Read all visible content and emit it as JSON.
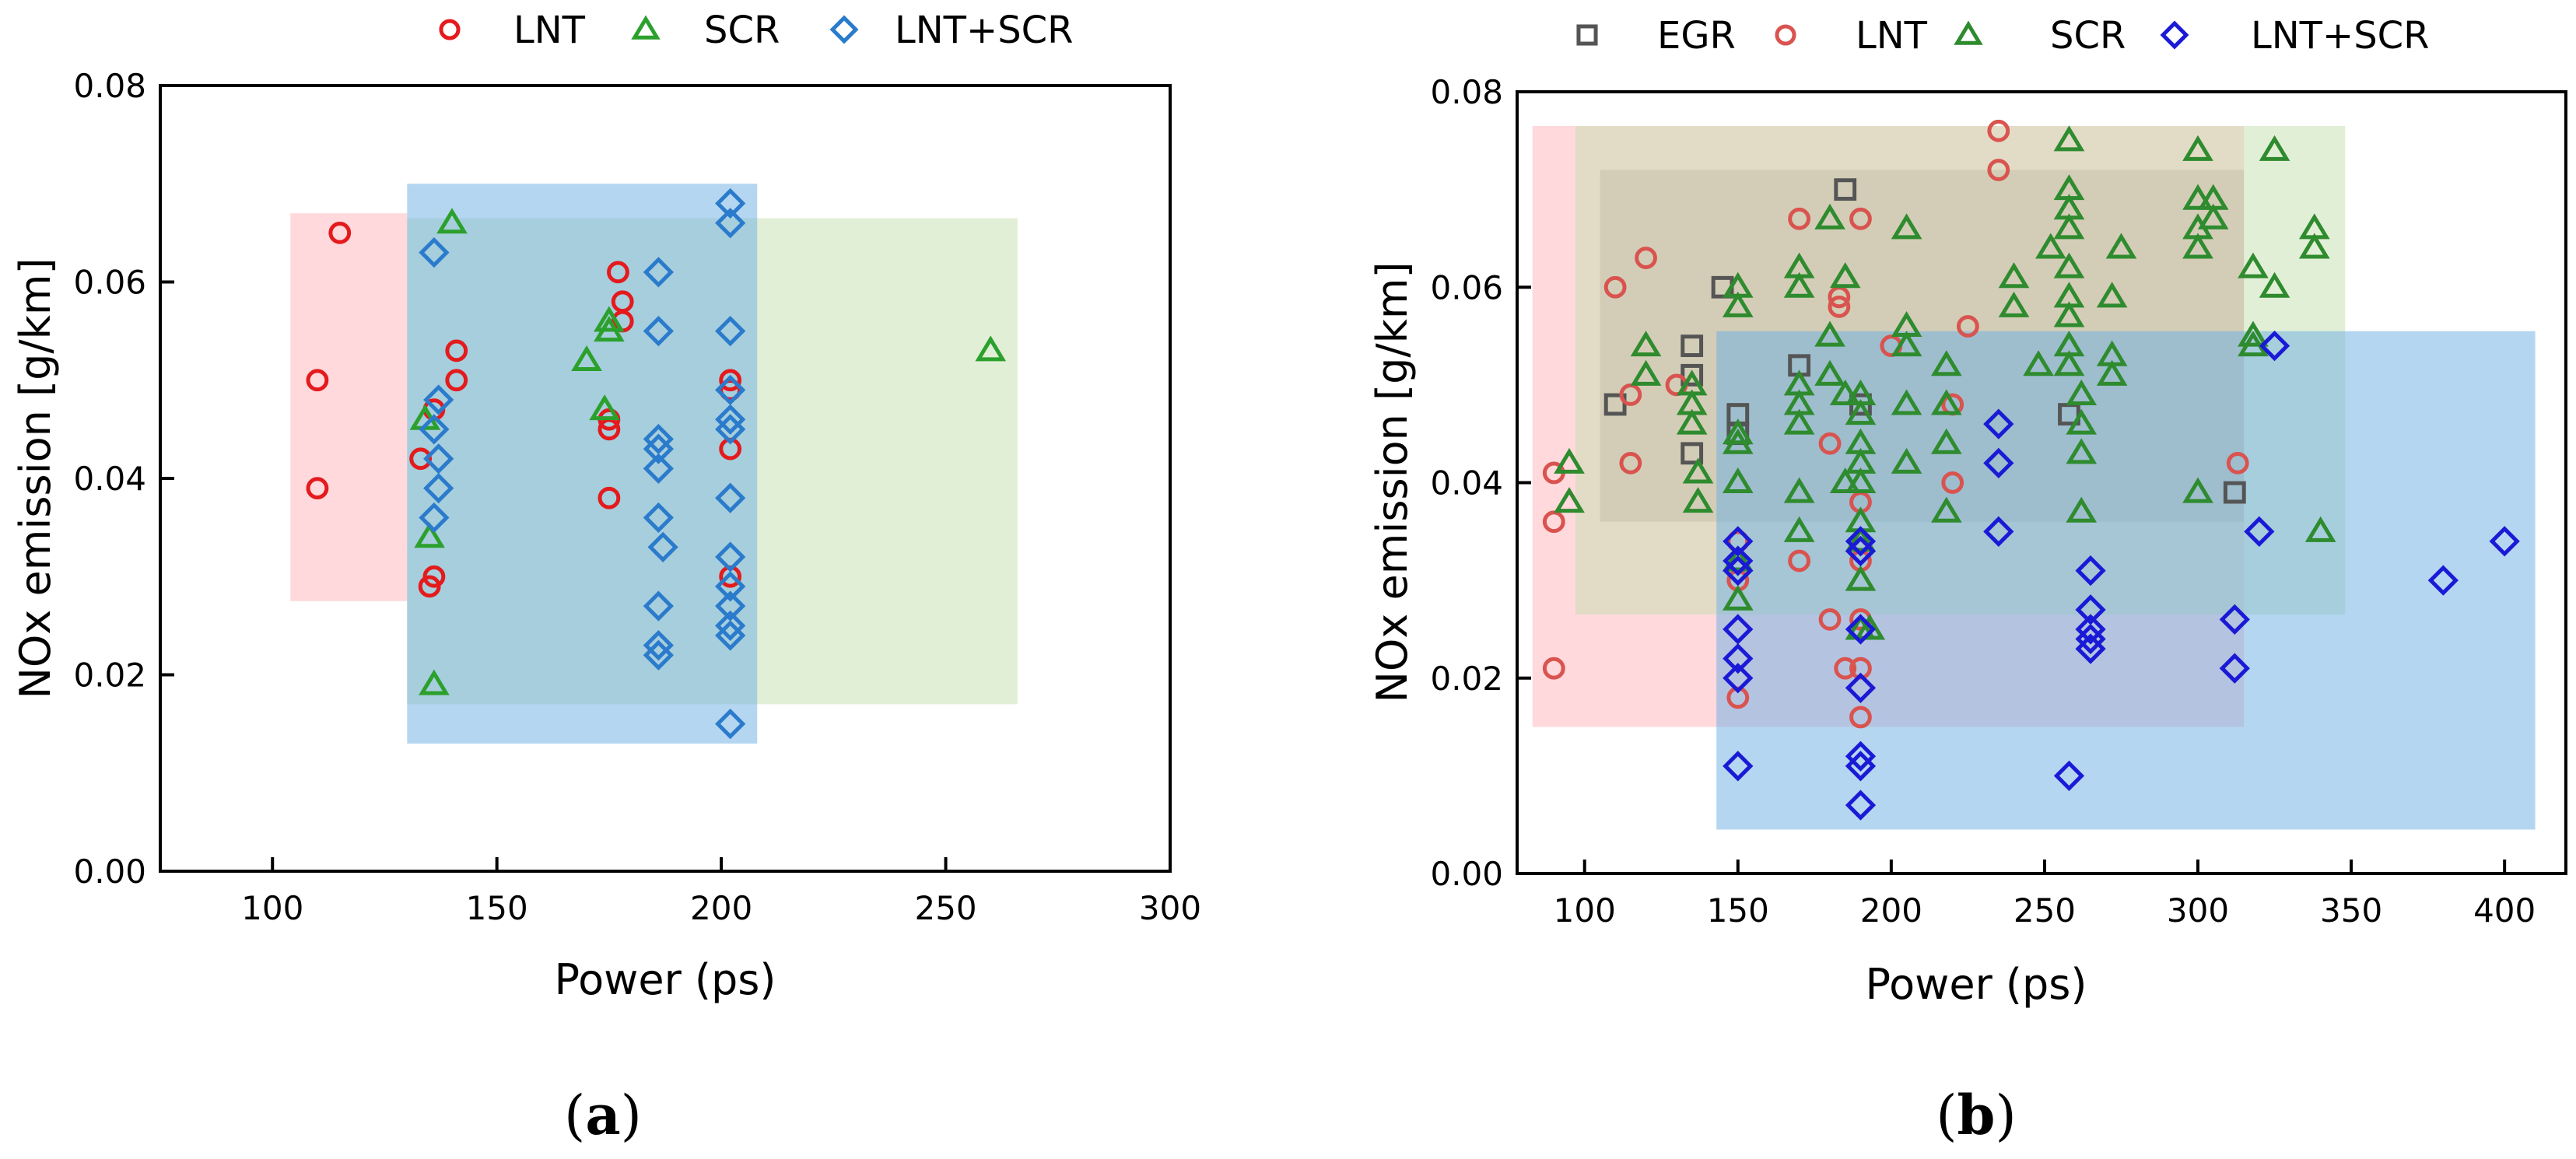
{
  "colors": {
    "LNT_a": "#e41a1c",
    "SCR_a": "#2ca02c",
    "LNTSCR_a": "#2b7bcc",
    "EGR_b": "#555555",
    "LNT_b": "#d9534f",
    "SCR_b": "#2e8b2e",
    "LNTSCR_b": "#1a1ad6",
    "region_LNT": "#ffb3ba",
    "region_SCR": "#c6e0b0",
    "region_LNTSCR": "#6aaee3",
    "region_EGR": "#7a7a7a"
  },
  "chart_data": [
    {
      "type": "scatter",
      "panel_label": "a",
      "xlabel": "Power (ps)",
      "ylabel": "NOx emission [g/km]",
      "xlim": [
        75,
        300
      ],
      "ylim": [
        0,
        0.08
      ],
      "xticks": [
        "100",
        "150",
        "200",
        "250",
        "300"
      ],
      "yticks": [
        "0.00",
        "0.02",
        "0.04",
        "0.06",
        "0.08"
      ],
      "legend_position": "top",
      "series": [
        {
          "name": "LNT",
          "marker": "circle",
          "color": "#e41a1c",
          "region": {
            "x": [
              104,
              130
            ],
            "y": [
              0.0275,
              0.067
            ],
            "color": "#ffb3ba"
          },
          "points": [
            [
              115,
              0.065
            ],
            [
              110,
              0.05
            ],
            [
              110,
              0.039
            ],
            [
              133,
              0.042
            ],
            [
              135,
              0.029
            ],
            [
              136,
              0.03
            ],
            [
              136,
              0.047
            ],
            [
              141,
              0.053
            ],
            [
              141,
              0.05
            ],
            [
              175,
              0.045
            ],
            [
              175,
              0.046
            ],
            [
              175,
              0.038
            ],
            [
              177,
              0.061
            ],
            [
              178,
              0.058
            ],
            [
              178,
              0.056
            ],
            [
              202,
              0.05
            ],
            [
              202,
              0.043
            ],
            [
              202,
              0.03
            ],
            [
              202,
              0.049
            ]
          ]
        },
        {
          "name": "SCR",
          "marker": "triangle",
          "color": "#2ca02c",
          "region": {
            "x": [
              130,
              266
            ],
            "y": [
              0.017,
              0.0665
            ],
            "color": "#c6e0b0"
          },
          "points": [
            [
              140,
              0.066
            ],
            [
              134,
              0.046
            ],
            [
              135,
              0.034
            ],
            [
              136,
              0.019
            ],
            [
              170,
              0.052
            ],
            [
              174,
              0.047
            ],
            [
              175,
              0.055
            ],
            [
              175,
              0.056
            ],
            [
              260,
              0.053
            ]
          ]
        },
        {
          "name": "LNT+SCR",
          "marker": "diamond",
          "color": "#2b7bcc",
          "region": {
            "x": [
              130,
              208
            ],
            "y": [
              0.013,
              0.07
            ],
            "color": "#6aaee3"
          },
          "points": [
            [
              136,
              0.063
            ],
            [
              137,
              0.048
            ],
            [
              136,
              0.045
            ],
            [
              137,
              0.042
            ],
            [
              137,
              0.039
            ],
            [
              136,
              0.036
            ],
            [
              186,
              0.061
            ],
            [
              186,
              0.055
            ],
            [
              186,
              0.044
            ],
            [
              186,
              0.043
            ],
            [
              186,
              0.041
            ],
            [
              186,
              0.036
            ],
            [
              187,
              0.033
            ],
            [
              186,
              0.027
            ],
            [
              186,
              0.023
            ],
            [
              186,
              0.022
            ],
            [
              202,
              0.068
            ],
            [
              202,
              0.066
            ],
            [
              202,
              0.055
            ],
            [
              202,
              0.049
            ],
            [
              202,
              0.046
            ],
            [
              202,
              0.045
            ],
            [
              202,
              0.038
            ],
            [
              202,
              0.032
            ],
            [
              202,
              0.029
            ],
            [
              202,
              0.027
            ],
            [
              202,
              0.025
            ],
            [
              202,
              0.024
            ],
            [
              202,
              0.015
            ]
          ]
        }
      ]
    },
    {
      "type": "scatter",
      "panel_label": "b",
      "xlabel": "Power (ps)",
      "ylabel": "NOx emission [g/km]",
      "xlim": [
        78,
        420
      ],
      "ylim": [
        0,
        0.08
      ],
      "xticks": [
        "100",
        "150",
        "200",
        "250",
        "300",
        "350",
        "400"
      ],
      "yticks": [
        "0.00",
        "0.02",
        "0.04",
        "0.06",
        "0.08"
      ],
      "legend_position": "top",
      "series": [
        {
          "name": "EGR",
          "marker": "square",
          "color": "#555555",
          "region": {
            "x": [
              105,
              315
            ],
            "y": [
              0.036,
              0.072
            ],
            "color": "#7a7a7a"
          },
          "points": [
            [
              110,
              0.048
            ],
            [
              135,
              0.054
            ],
            [
              135,
              0.051
            ],
            [
              135,
              0.043
            ],
            [
              145,
              0.06
            ],
            [
              150,
              0.047
            ],
            [
              150,
              0.045
            ],
            [
              170,
              0.052
            ],
            [
              185,
              0.07
            ],
            [
              190,
              0.048
            ],
            [
              258,
              0.047
            ],
            [
              312,
              0.039
            ]
          ]
        },
        {
          "name": "LNT",
          "marker": "circle",
          "color": "#d9534f",
          "region": {
            "x": [
              83,
              315
            ],
            "y": [
              0.015,
              0.0765
            ],
            "color": "#ffb3ba"
          },
          "points": [
            [
              90,
              0.041
            ],
            [
              90,
              0.036
            ],
            [
              90,
              0.021
            ],
            [
              110,
              0.06
            ],
            [
              115,
              0.049
            ],
            [
              115,
              0.042
            ],
            [
              120,
              0.063
            ],
            [
              130,
              0.05
            ],
            [
              150,
              0.034
            ],
            [
              150,
              0.03
            ],
            [
              150,
              0.018
            ],
            [
              170,
              0.067
            ],
            [
              170,
              0.032
            ],
            [
              180,
              0.026
            ],
            [
              180,
              0.044
            ],
            [
              183,
              0.059
            ],
            [
              183,
              0.058
            ],
            [
              185,
              0.021
            ],
            [
              190,
              0.067
            ],
            [
              190,
              0.038
            ],
            [
              190,
              0.032
            ],
            [
              190,
              0.026
            ],
            [
              190,
              0.021
            ],
            [
              190,
              0.016
            ],
            [
              200,
              0.054
            ],
            [
              220,
              0.048
            ],
            [
              220,
              0.04
            ],
            [
              225,
              0.056
            ],
            [
              235,
              0.076
            ],
            [
              235,
              0.072
            ],
            [
              313,
              0.042
            ]
          ]
        },
        {
          "name": "SCR",
          "marker": "triangle",
          "color": "#2e8b2e",
          "region": {
            "x": [
              97,
              348
            ],
            "y": [
              0.0265,
              0.0765
            ],
            "color": "#c6e0b0"
          },
          "points": [
            [
              95,
              0.042
            ],
            [
              95,
              0.038
            ],
            [
              120,
              0.054
            ],
            [
              120,
              0.051
            ],
            [
              135,
              0.05
            ],
            [
              135,
              0.048
            ],
            [
              135,
              0.046
            ],
            [
              137,
              0.041
            ],
            [
              137,
              0.038
            ],
            [
              150,
              0.06
            ],
            [
              150,
              0.058
            ],
            [
              150,
              0.045
            ],
            [
              150,
              0.044
            ],
            [
              150,
              0.04
            ],
            [
              150,
              0.032
            ],
            [
              150,
              0.028
            ],
            [
              170,
              0.062
            ],
            [
              170,
              0.06
            ],
            [
              170,
              0.05
            ],
            [
              170,
              0.048
            ],
            [
              170,
              0.046
            ],
            [
              170,
              0.039
            ],
            [
              170,
              0.035
            ],
            [
              180,
              0.067
            ],
            [
              180,
              0.055
            ],
            [
              180,
              0.051
            ],
            [
              185,
              0.061
            ],
            [
              185,
              0.049
            ],
            [
              185,
              0.04
            ],
            [
              190,
              0.049
            ],
            [
              190,
              0.047
            ],
            [
              190,
              0.044
            ],
            [
              190,
              0.042
            ],
            [
              190,
              0.04
            ],
            [
              190,
              0.036
            ],
            [
              190,
              0.034
            ],
            [
              190,
              0.03
            ],
            [
              190,
              0.025
            ],
            [
              193,
              0.025
            ],
            [
              205,
              0.066
            ],
            [
              205,
              0.056
            ],
            [
              205,
              0.054
            ],
            [
              205,
              0.048
            ],
            [
              205,
              0.042
            ],
            [
              218,
              0.052
            ],
            [
              218,
              0.048
            ],
            [
              218,
              0.044
            ],
            [
              218,
              0.037
            ],
            [
              240,
              0.061
            ],
            [
              240,
              0.058
            ],
            [
              248,
              0.052
            ],
            [
              252,
              0.064
            ],
            [
              258,
              0.075
            ],
            [
              258,
              0.07
            ],
            [
              258,
              0.068
            ],
            [
              258,
              0.066
            ],
            [
              258,
              0.062
            ],
            [
              258,
              0.059
            ],
            [
              258,
              0.057
            ],
            [
              258,
              0.054
            ],
            [
              258,
              0.052
            ],
            [
              262,
              0.049
            ],
            [
              262,
              0.046
            ],
            [
              262,
              0.043
            ],
            [
              262,
              0.037
            ],
            [
              272,
              0.059
            ],
            [
              272,
              0.053
            ],
            [
              272,
              0.051
            ],
            [
              275,
              0.064
            ],
            [
              300,
              0.074
            ],
            [
              300,
              0.069
            ],
            [
              300,
              0.066
            ],
            [
              300,
              0.064
            ],
            [
              305,
              0.069
            ],
            [
              305,
              0.067
            ],
            [
              300,
              0.039
            ],
            [
              318,
              0.062
            ],
            [
              318,
              0.055
            ],
            [
              318,
              0.054
            ],
            [
              325,
              0.074
            ],
            [
              325,
              0.06
            ],
            [
              338,
              0.066
            ],
            [
              338,
              0.064
            ],
            [
              340,
              0.035
            ]
          ]
        },
        {
          "name": "LNT+SCR",
          "marker": "diamond",
          "color": "#1a1ad6",
          "region": {
            "x": [
              143,
              410
            ],
            "y": [
              0.0045,
              0.0555
            ],
            "color": "#6aaee3"
          },
          "points": [
            [
              150,
              0.034
            ],
            [
              150,
              0.032
            ],
            [
              150,
              0.031
            ],
            [
              150,
              0.025
            ],
            [
              150,
              0.022
            ],
            [
              150,
              0.02
            ],
            [
              150,
              0.011
            ],
            [
              190,
              0.034
            ],
            [
              190,
              0.033
            ],
            [
              190,
              0.025
            ],
            [
              190,
              0.019
            ],
            [
              190,
              0.012
            ],
            [
              190,
              0.011
            ],
            [
              190,
              0.007
            ],
            [
              235,
              0.046
            ],
            [
              235,
              0.042
            ],
            [
              235,
              0.035
            ],
            [
              258,
              0.01
            ],
            [
              265,
              0.031
            ],
            [
              265,
              0.027
            ],
            [
              265,
              0.025
            ],
            [
              265,
              0.024
            ],
            [
              265,
              0.023
            ],
            [
              312,
              0.026
            ],
            [
              312,
              0.021
            ],
            [
              320,
              0.035
            ],
            [
              325,
              0.054
            ],
            [
              380,
              0.03
            ],
            [
              400,
              0.034
            ]
          ]
        }
      ]
    }
  ]
}
